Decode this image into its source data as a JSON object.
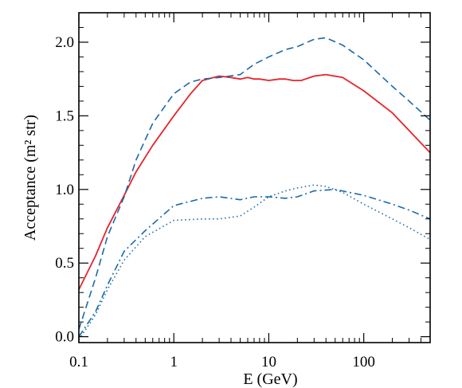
{
  "chart_data": {
    "type": "line",
    "xlabel": "E (GeV)",
    "ylabel": "Acceptance (m² str)",
    "xscale": "log",
    "xlim": [
      0.1,
      500
    ],
    "ylim": [
      -0.04,
      2.2
    ],
    "grid": false,
    "legend": "none",
    "x_ticks": [
      0.1,
      1,
      10,
      100
    ],
    "x_tick_labels": [
      "0.1",
      "1",
      "10",
      "100"
    ],
    "y_ticks": [
      0.0,
      0.5,
      1.0,
      1.5,
      2.0
    ],
    "y_tick_labels": [
      "0.0",
      "0.5",
      "1.0",
      "1.5",
      "2.0"
    ],
    "series": [
      {
        "style": "solid",
        "color": "#e8232a",
        "x": [
          0.1,
          0.15,
          0.2,
          0.3,
          0.4,
          0.6,
          1.0,
          1.5,
          2.0,
          3.0,
          4.0,
          5.0,
          6.0,
          7.0,
          8.0,
          10.0,
          13.0,
          15.0,
          18.0,
          22.0,
          30.0,
          40.0,
          60.0,
          100.0,
          200.0,
          300.0,
          500.0
        ],
        "y": [
          0.32,
          0.55,
          0.74,
          0.96,
          1.12,
          1.3,
          1.5,
          1.65,
          1.74,
          1.77,
          1.76,
          1.75,
          1.76,
          1.75,
          1.75,
          1.74,
          1.75,
          1.75,
          1.74,
          1.74,
          1.77,
          1.78,
          1.76,
          1.67,
          1.52,
          1.4,
          1.25
        ]
      },
      {
        "style": "dashed",
        "color": "#1a6aa8",
        "x": [
          0.1,
          0.15,
          0.2,
          0.3,
          0.4,
          0.6,
          1.0,
          1.5,
          2.0,
          3.0,
          5.0,
          7.0,
          10.0,
          15.0,
          20.0,
          30.0,
          40.0,
          60.0,
          100.0,
          200.0,
          300.0,
          500.0
        ],
        "y": [
          0.05,
          0.4,
          0.68,
          0.95,
          1.2,
          1.45,
          1.65,
          1.73,
          1.75,
          1.76,
          1.78,
          1.85,
          1.9,
          1.95,
          1.97,
          2.02,
          2.03,
          1.98,
          1.88,
          1.7,
          1.6,
          1.47
        ]
      },
      {
        "style": "dashdot",
        "color": "#1a6aa8",
        "x": [
          0.1,
          0.15,
          0.2,
          0.3,
          0.5,
          1.0,
          2.0,
          3.0,
          5.0,
          7.0,
          10.0,
          15.0,
          20.0,
          30.0,
          50.0,
          100.0,
          200.0,
          300.0,
          500.0
        ],
        "y": [
          0.0,
          0.17,
          0.35,
          0.58,
          0.72,
          0.89,
          0.94,
          0.95,
          0.93,
          0.95,
          0.95,
          0.94,
          0.95,
          0.99,
          1.0,
          0.96,
          0.9,
          0.86,
          0.8
        ]
      },
      {
        "style": "dotted",
        "color": "#1a6aa8",
        "x": [
          0.1,
          0.15,
          0.2,
          0.3,
          0.5,
          1.0,
          2.0,
          3.0,
          5.0,
          7.0,
          10.0,
          15.0,
          20.0,
          30.0,
          40.0,
          60.0,
          100.0,
          200.0,
          300.0,
          500.0
        ],
        "y": [
          -0.02,
          0.15,
          0.32,
          0.52,
          0.68,
          0.79,
          0.8,
          0.8,
          0.82,
          0.88,
          0.95,
          0.99,
          1.01,
          1.03,
          1.02,
          0.98,
          0.9,
          0.8,
          0.74,
          0.66
        ]
      }
    ]
  }
}
